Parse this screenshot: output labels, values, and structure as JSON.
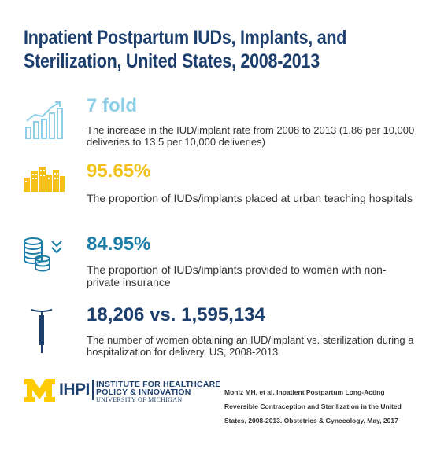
{
  "title": "Inpatient Postpartum IUDs, Implants, and Sterilization, United States, 2008-2013",
  "colors": {
    "title": "#1d3f6e",
    "light_blue": "#8ccfe6",
    "gold": "#f2c21b",
    "teal": "#1c7ea6",
    "navy": "#1d3f6e",
    "michigan_maize": "#ffcb05"
  },
  "stats": [
    {
      "icon": "rising-bar-chart-icon",
      "value": "7 fold",
      "description": "The increase in the IUD/implant rate from 2008 to 2013 (1.86 per 10,000 deliveries to 13.5 per 10,000 deliveries)"
    },
    {
      "icon": "city-skyline-icon",
      "value": "95.65%",
      "description": "The proportion of IUDs/implants placed at urban teaching hospitals"
    },
    {
      "icon": "coin-stack-icon",
      "value": "84.95%",
      "description": "The proportion of IUDs/implants provided to women with non-private insurance"
    },
    {
      "icon": "iud-icon",
      "value": "18,206 vs. 1,595,134",
      "description": "The number of women obtaining an IUD/implant vs. sterilization during a hospitalization for delivery, US, 2008-2013"
    }
  ],
  "footer": {
    "logo_text": "IHPI",
    "institute_line1": "INSTITUTE FOR HEALTHCARE",
    "institute_line2": "POLICY & INNOVATION",
    "institute_line3": "UNIVERSITY OF MICHIGAN",
    "citation": "Moniz MH, et al. Inpatient Postpartum Long-Acting Reversible Contraception and Sterilization in the United States, 2008-2013. Obstetrics & Gynecology. May, 2017"
  }
}
